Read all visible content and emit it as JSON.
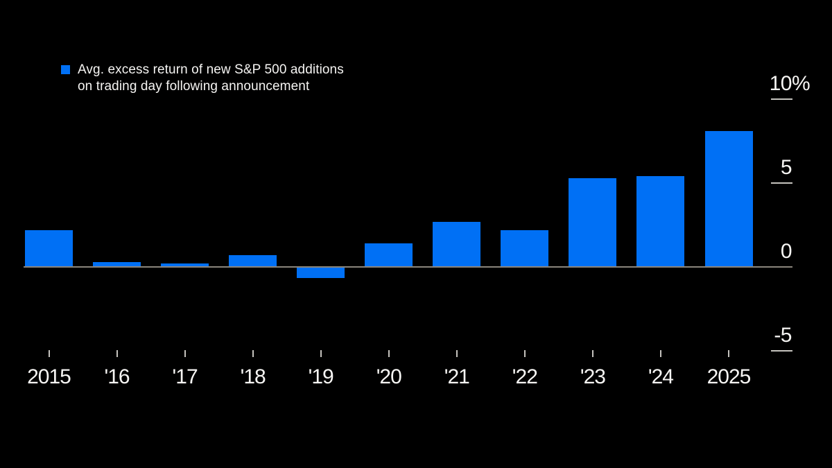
{
  "chart_data": {
    "type": "bar",
    "legend": {
      "line1": "Avg. excess return of new S&P 500 additions",
      "line2": "on trading day following announcement",
      "position": "top-left"
    },
    "categories": [
      "2015",
      "'16",
      "'17",
      "'18",
      "'19",
      "'20",
      "'21",
      "'22",
      "'23",
      "'24",
      "2025"
    ],
    "values": [
      2.2,
      0.3,
      0.2,
      0.7,
      -0.6,
      1.4,
      2.7,
      2.2,
      5.3,
      5.4,
      8.1
    ],
    "unit": "%",
    "xlabel": "",
    "ylabel": "",
    "ylim": [
      -5,
      10
    ],
    "y_axis_side": "right",
    "y_ticks": [
      {
        "value": 10,
        "label": "10",
        "suffix": "%"
      },
      {
        "value": 5,
        "label": "5",
        "suffix": ""
      },
      {
        "value": 0,
        "label": "0",
        "suffix": ""
      },
      {
        "value": -5,
        "label": "-5",
        "suffix": ""
      }
    ],
    "grid": false,
    "colors": {
      "background": "#000000",
      "bar": "#0070f5",
      "axis_line": "#8a857c",
      "tick": "#c6c4bf",
      "text": "#f6f5f3"
    }
  }
}
